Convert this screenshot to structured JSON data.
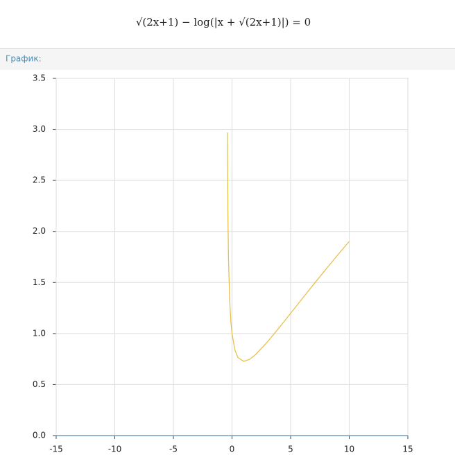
{
  "equation": "√(2x+1) − log(|x + √(2x+1)|) = 0",
  "section_label": "График:",
  "chart_data": {
    "type": "line",
    "x": [
      -0.389,
      -0.38,
      -0.35,
      -0.3,
      -0.2,
      -0.1,
      0,
      0.25,
      0.5,
      1,
      1.5,
      2,
      3,
      4,
      5,
      6,
      7,
      8,
      9,
      10
    ],
    "series": [
      {
        "color": "#e8c04c",
        "values": [
          2.97,
          2.7,
          2.17,
          1.73,
          1.33,
          1.12,
          1.0,
          0.836,
          0.765,
          0.727,
          0.747,
          0.792,
          0.915,
          1.054,
          1.198,
          1.343,
          1.487,
          1.628,
          1.767,
          1.903
        ]
      }
    ],
    "xlim": [
      -15,
      15
    ],
    "ylim": [
      0,
      3.5
    ],
    "xticks": [
      -15,
      -10,
      -5,
      0,
      5,
      10,
      15
    ],
    "yticks": [
      {
        "value": 0,
        "label": "0.0"
      },
      0.5,
      {
        "value": 1,
        "label": "1.0"
      },
      1.5,
      {
        "value": 2,
        "label": "2.0"
      },
      2.5,
      {
        "value": 3,
        "label": "3.0"
      },
      3.5
    ],
    "grid": true
  }
}
